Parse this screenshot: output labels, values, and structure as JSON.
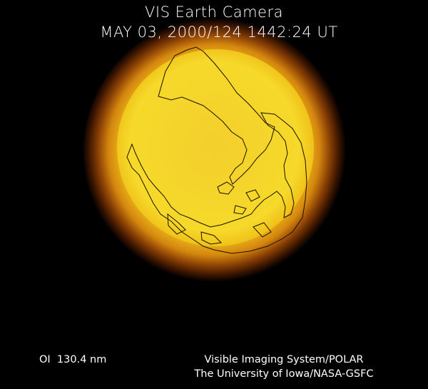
{
  "header": {
    "title": "VIS Earth Camera",
    "timestamp": "MAY 03, 2000/124 1442:24 UT"
  },
  "footer": {
    "filter": "OI  130.4 nm",
    "credit_lines": [
      "Visible Imaging System/POLAR",
      "The University of Iowa/NASA-GSFC"
    ]
  }
}
